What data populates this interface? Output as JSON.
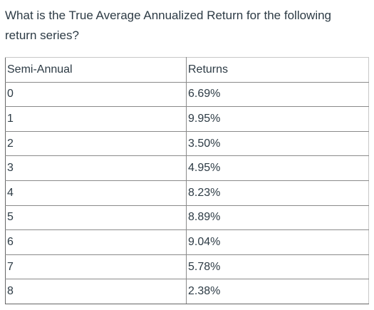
{
  "question": {
    "line1": "What is the True Average Annualized Return for the following",
    "line2": "return series?"
  },
  "table": {
    "headers": [
      "Semi-Annual",
      "Returns"
    ],
    "rows": [
      {
        "period": "0",
        "return": "6.69%"
      },
      {
        "period": "1",
        "return": "9.95%"
      },
      {
        "period": "2",
        "return": "3.50%"
      },
      {
        "period": "3",
        "return": "4.95%"
      },
      {
        "period": "4",
        "return": "8.23%"
      },
      {
        "period": "5",
        "return": "8.89%"
      },
      {
        "period": "6",
        "return": "9.04%"
      },
      {
        "period": "7",
        "return": "5.78%"
      },
      {
        "period": "8",
        "return": "2.38%"
      }
    ]
  }
}
